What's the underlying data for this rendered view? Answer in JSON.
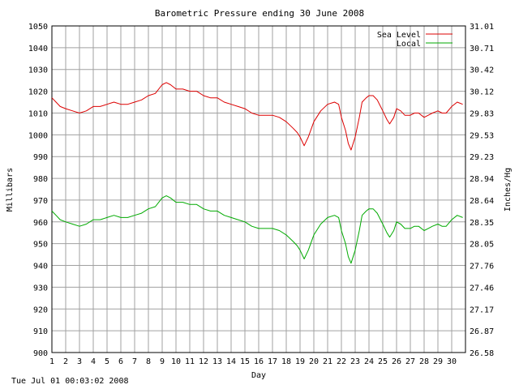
{
  "footer": {
    "timestamp": "Tue Jul 01 00:03:02 2008"
  },
  "chart_data": {
    "type": "line",
    "title": "Barometric Pressure ending 30 June 2008",
    "xlabel": "Day",
    "ylabel": "Millibars",
    "ylabel_right": "Inches/Hg",
    "x_ticks": [
      "1",
      "2",
      "3",
      "4",
      "5",
      "6",
      "7",
      "8",
      "9",
      "10",
      "11",
      "12",
      "13",
      "14",
      "15",
      "16",
      "17",
      "18",
      "19",
      "20",
      "21",
      "22",
      "23",
      "24",
      "25",
      "26",
      "27",
      "28",
      "29",
      "30"
    ],
    "xlim": [
      1,
      31
    ],
    "ylim": [
      900,
      1050
    ],
    "y_ticks_left": [
      "900",
      "910",
      "920",
      "930",
      "940",
      "950",
      "960",
      "970",
      "980",
      "990",
      "1000",
      "1010",
      "1020",
      "1030",
      "1040",
      "1050"
    ],
    "y_ticks_right": [
      "26.58",
      "26.87",
      "27.17",
      "27.46",
      "27.76",
      "28.05",
      "28.35",
      "28.64",
      "28.94",
      "29.23",
      "29.53",
      "29.83",
      "30.12",
      "30.42",
      "30.71",
      "31.01"
    ],
    "grid": true,
    "legend_position": "top-right",
    "series": [
      {
        "name": "Sea Level",
        "color": "#dd0000",
        "x": [
          1,
          1.3,
          1.6,
          2,
          2.5,
          3,
          3.5,
          4,
          4.5,
          5,
          5.5,
          6,
          6.5,
          7,
          7.5,
          8,
          8.5,
          9,
          9.3,
          9.6,
          10,
          10.5,
          11,
          11.5,
          12,
          12.5,
          13,
          13.5,
          14,
          14.5,
          15,
          15.5,
          16,
          16.5,
          17,
          17.5,
          18,
          18.5,
          18.8,
          19,
          19.3,
          19.6,
          20,
          20.5,
          21,
          21.5,
          21.8,
          22,
          22.3,
          22.5,
          22.7,
          23,
          23.3,
          23.5,
          23.8,
          24,
          24.3,
          24.6,
          25,
          25.3,
          25.5,
          25.8,
          26,
          26.3,
          26.6,
          27,
          27.3,
          27.6,
          28,
          28.3,
          28.6,
          29,
          29.3,
          29.6,
          30,
          30.4,
          30.8
        ],
        "values": [
          1017,
          1015,
          1013,
          1012,
          1011,
          1010,
          1011,
          1013,
          1013,
          1014,
          1015,
          1014,
          1014,
          1015,
          1016,
          1018,
          1019,
          1023,
          1024,
          1023,
          1021,
          1021,
          1020,
          1020,
          1018,
          1017,
          1017,
          1015,
          1014,
          1013,
          1012,
          1010,
          1009,
          1009,
          1009,
          1008,
          1006,
          1003,
          1001,
          999,
          995,
          999,
          1006,
          1011,
          1014,
          1015,
          1014,
          1008,
          1002,
          996,
          993,
          999,
          1008,
          1015,
          1017,
          1018,
          1018,
          1016,
          1011,
          1007,
          1005,
          1008,
          1012,
          1011,
          1009,
          1009,
          1010,
          1010,
          1008,
          1009,
          1010,
          1011,
          1010,
          1010,
          1013,
          1015,
          1014
        ]
      },
      {
        "name": "Local",
        "color": "#00aa00",
        "x": [
          1,
          1.3,
          1.6,
          2,
          2.5,
          3,
          3.5,
          4,
          4.5,
          5,
          5.5,
          6,
          6.5,
          7,
          7.5,
          8,
          8.5,
          9,
          9.3,
          9.6,
          10,
          10.5,
          11,
          11.5,
          12,
          12.5,
          13,
          13.5,
          14,
          14.5,
          15,
          15.5,
          16,
          16.5,
          17,
          17.5,
          18,
          18.5,
          18.8,
          19,
          19.3,
          19.6,
          20,
          20.5,
          21,
          21.5,
          21.8,
          22,
          22.3,
          22.5,
          22.7,
          23,
          23.3,
          23.5,
          23.8,
          24,
          24.3,
          24.6,
          25,
          25.3,
          25.5,
          25.8,
          26,
          26.3,
          26.6,
          27,
          27.3,
          27.6,
          28,
          28.3,
          28.6,
          29,
          29.3,
          29.6,
          30,
          30.4,
          30.8
        ],
        "values": [
          965,
          963,
          961,
          960,
          959,
          958,
          959,
          961,
          961,
          962,
          963,
          962,
          962,
          963,
          964,
          966,
          967,
          971,
          972,
          971,
          969,
          969,
          968,
          968,
          966,
          965,
          965,
          963,
          962,
          961,
          960,
          958,
          957,
          957,
          957,
          956,
          954,
          951,
          949,
          947,
          943,
          947,
          954,
          959,
          962,
          963,
          962,
          956,
          950,
          944,
          941,
          947,
          956,
          963,
          965,
          966,
          966,
          964,
          959,
          955,
          953,
          956,
          960,
          959,
          957,
          957,
          958,
          958,
          956,
          957,
          958,
          959,
          958,
          958,
          961,
          963,
          962
        ]
      }
    ]
  }
}
